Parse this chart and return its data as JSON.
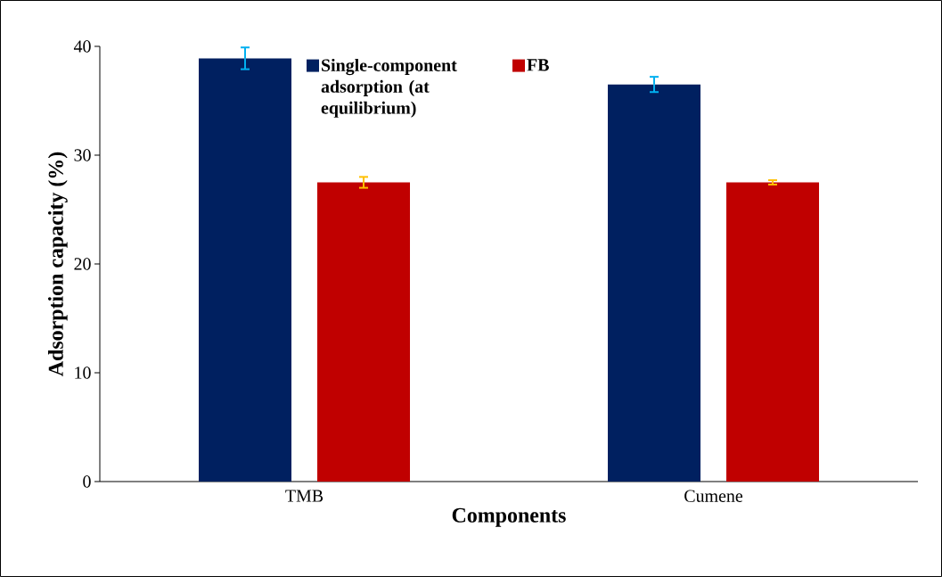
{
  "chart_data": {
    "type": "bar",
    "xlabel": "Components",
    "ylabel": "Adsorption capacity (%)",
    "categories": [
      "TMB",
      "Cumene"
    ],
    "series": [
      {
        "name": "Single-component adsorption (at equilibrium)",
        "color": "#002060",
        "values": [
          38.9,
          36.5
        ],
        "errors": [
          1.0,
          0.7
        ]
      },
      {
        "name": "FB",
        "color": "#c00000",
        "values": [
          27.5,
          27.5
        ],
        "errors": [
          0.5,
          0.2
        ]
      }
    ],
    "ylim": [
      0,
      40
    ],
    "yticks": [
      0,
      10,
      20,
      30,
      40
    ],
    "grid": false,
    "legend": "top"
  }
}
